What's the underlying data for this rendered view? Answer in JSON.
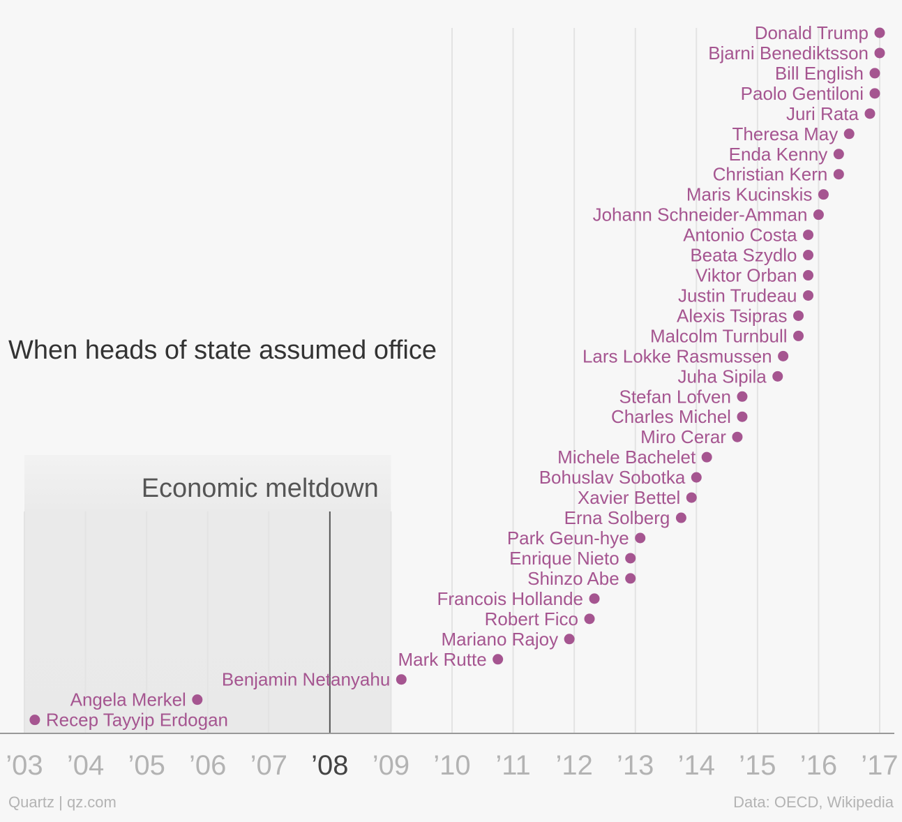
{
  "chart_data": {
    "type": "scatter",
    "title": "When heads of state assumed office",
    "annotation": {
      "label": "Economic meltdown",
      "range_start": 2003.0,
      "range_end": 2009.0,
      "line_at": 2008.0
    },
    "xlim": [
      2003.0,
      2017.0
    ],
    "x_ticks": [
      {
        "value": 2003,
        "label": "’03",
        "highlight": false
      },
      {
        "value": 2004,
        "label": "’04",
        "highlight": false
      },
      {
        "value": 2005,
        "label": "’05",
        "highlight": false
      },
      {
        "value": 2006,
        "label": "’06",
        "highlight": false
      },
      {
        "value": 2007,
        "label": "’07",
        "highlight": false
      },
      {
        "value": 2008,
        "label": "’08",
        "highlight": true
      },
      {
        "value": 2009,
        "label": "’09",
        "highlight": false
      },
      {
        "value": 2010,
        "label": "’10",
        "highlight": false
      },
      {
        "value": 2011,
        "label": "’11",
        "highlight": false
      },
      {
        "value": 2012,
        "label": "’12",
        "highlight": false
      },
      {
        "value": 2013,
        "label": "’13",
        "highlight": false
      },
      {
        "value": 2014,
        "label": "’14",
        "highlight": false
      },
      {
        "value": 2015,
        "label": "’15",
        "highlight": false
      },
      {
        "value": 2016,
        "label": "’16",
        "highlight": false
      },
      {
        "value": 2017,
        "label": "’17",
        "highlight": false
      }
    ],
    "grid": true,
    "colors": {
      "point": "#a55590",
      "label": "#a55590",
      "tick": "#b3b3b3",
      "tick_highlight": "#444444",
      "shade": "#e9e9e9",
      "gridline": "#e3e3e3",
      "axis": "#999999",
      "line": "#555555",
      "title": "#333333",
      "footer": "#b3b3b3"
    },
    "points": [
      {
        "name": "Donald Trump",
        "x": 2017.0
      },
      {
        "name": "Bjarni Benediktsson",
        "x": 2017.0
      },
      {
        "name": "Bill English",
        "x": 2016.92
      },
      {
        "name": "Paolo Gentiloni",
        "x": 2016.92
      },
      {
        "name": "Juri Rata",
        "x": 2016.84
      },
      {
        "name": "Theresa May",
        "x": 2016.5
      },
      {
        "name": "Enda Kenny",
        "x": 2016.33
      },
      {
        "name": "Christian Kern",
        "x": 2016.33
      },
      {
        "name": "Maris Kucinskis",
        "x": 2016.08
      },
      {
        "name": "Johann Schneider-Amman",
        "x": 2016.0
      },
      {
        "name": "Antonio Costa",
        "x": 2015.83
      },
      {
        "name": "Beata Szydlo",
        "x": 2015.83
      },
      {
        "name": "Viktor Orban",
        "x": 2015.83
      },
      {
        "name": "Justin Trudeau",
        "x": 2015.83
      },
      {
        "name": "Alexis Tsipras",
        "x": 2015.67
      },
      {
        "name": "Malcolm Turnbull",
        "x": 2015.67
      },
      {
        "name": "Lars Lokke Rasmussen",
        "x": 2015.42
      },
      {
        "name": "Juha Sipila",
        "x": 2015.33
      },
      {
        "name": "Stefan Lofven",
        "x": 2014.75
      },
      {
        "name": "Charles Michel",
        "x": 2014.75
      },
      {
        "name": "Miro Cerar",
        "x": 2014.67
      },
      {
        "name": "Michele Bachelet",
        "x": 2014.17
      },
      {
        "name": "Bohuslav Sobotka",
        "x": 2014.0
      },
      {
        "name": "Xavier Bettel",
        "x": 2013.92
      },
      {
        "name": "Erna Solberg",
        "x": 2013.75
      },
      {
        "name": "Park Geun-hye",
        "x": 2013.08
      },
      {
        "name": "Enrique Nieto",
        "x": 2012.92
      },
      {
        "name": "Shinzo Abe",
        "x": 2012.92
      },
      {
        "name": "Francois Hollande",
        "x": 2012.33
      },
      {
        "name": "Robert Fico",
        "x": 2012.25
      },
      {
        "name": "Mariano Rajoy",
        "x": 2011.92
      },
      {
        "name": "Mark Rutte",
        "x": 2010.75
      },
      {
        "name": "Benjamin Netanyahu",
        "x": 2009.17
      },
      {
        "name": "Angela Merkel",
        "x": 2005.83
      },
      {
        "name": "Recep Tayyip Erdogan",
        "x": 2003.17,
        "label_side": "right"
      }
    ]
  },
  "footer": {
    "source_left": "Quartz | qz.com",
    "source_right": "Data: OECD, Wikipedia"
  }
}
